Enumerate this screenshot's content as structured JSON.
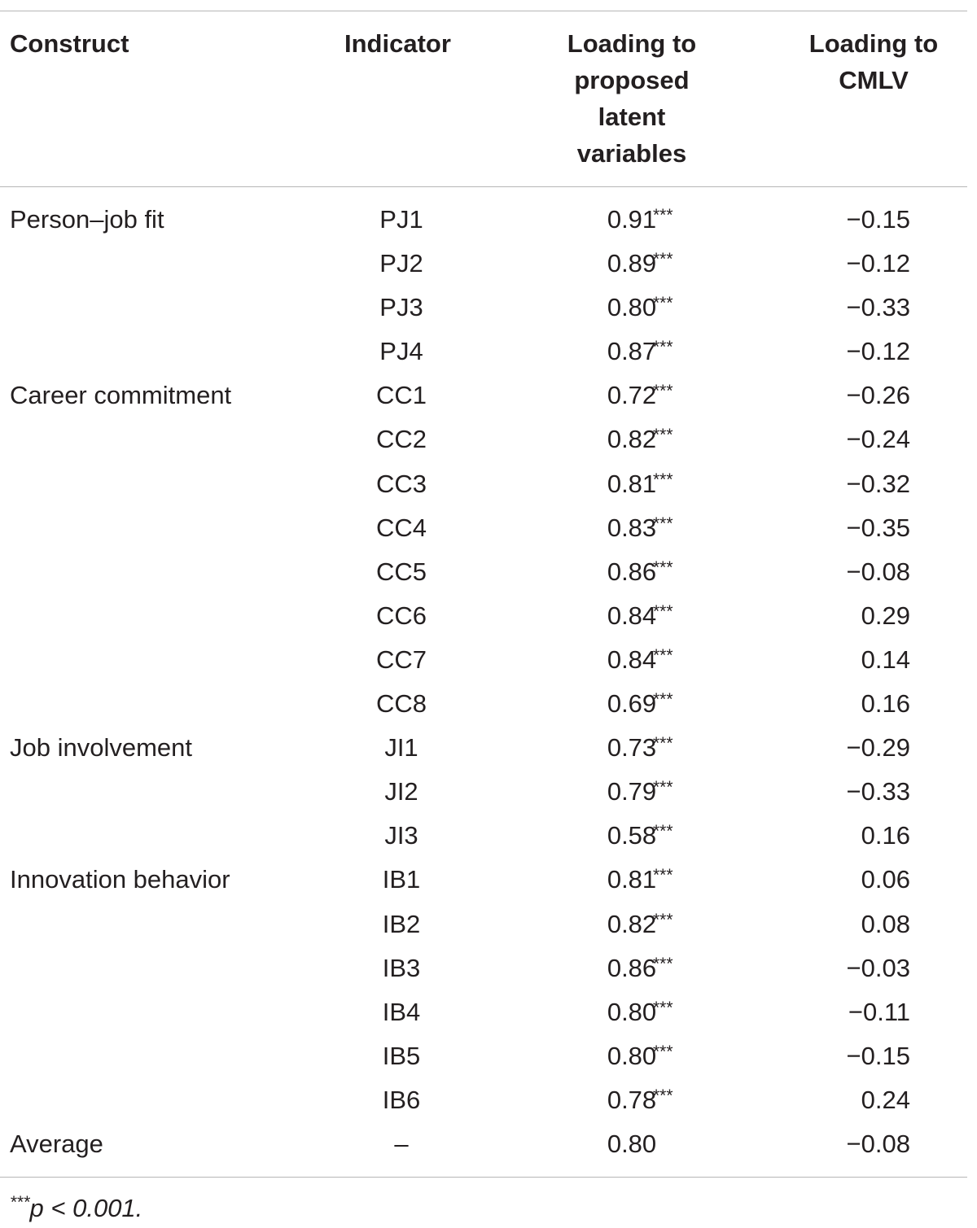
{
  "headers": {
    "construct": "Construct",
    "indicator": "Indicator",
    "loading_latent": [
      "Loading to",
      "proposed",
      "latent",
      "variables"
    ],
    "loading_cmlv": [
      "Loading to",
      "CMLV"
    ]
  },
  "rows": [
    {
      "construct": "Person–job fit",
      "indicator": "PJ1",
      "loading": "0.91",
      "sig": "***",
      "cmlv": "−0.15"
    },
    {
      "construct": "",
      "indicator": "PJ2",
      "loading": "0.89",
      "sig": "***",
      "cmlv": "−0.12"
    },
    {
      "construct": "",
      "indicator": "PJ3",
      "loading": "0.80",
      "sig": "***",
      "cmlv": "−0.33"
    },
    {
      "construct": "",
      "indicator": "PJ4",
      "loading": "0.87",
      "sig": "***",
      "cmlv": "−0.12"
    },
    {
      "construct": "Career commitment",
      "indicator": "CC1",
      "loading": "0.72",
      "sig": "***",
      "cmlv": "−0.26"
    },
    {
      "construct": "",
      "indicator": "CC2",
      "loading": "0.82",
      "sig": "***",
      "cmlv": "−0.24"
    },
    {
      "construct": "",
      "indicator": "CC3",
      "loading": "0.81",
      "sig": "***",
      "cmlv": "−0.32"
    },
    {
      "construct": "",
      "indicator": "CC4",
      "loading": "0.83",
      "sig": "***",
      "cmlv": "−0.35"
    },
    {
      "construct": "",
      "indicator": "CC5",
      "loading": "0.86",
      "sig": "***",
      "cmlv": "−0.08"
    },
    {
      "construct": "",
      "indicator": "CC6",
      "loading": "0.84",
      "sig": "***",
      "cmlv": "0.29"
    },
    {
      "construct": "",
      "indicator": "CC7",
      "loading": "0.84",
      "sig": "***",
      "cmlv": "0.14"
    },
    {
      "construct": "",
      "indicator": "CC8",
      "loading": "0.69",
      "sig": "***",
      "cmlv": "0.16"
    },
    {
      "construct": "Job involvement",
      "indicator": "JI1",
      "loading": "0.73",
      "sig": "***",
      "cmlv": "−0.29"
    },
    {
      "construct": "",
      "indicator": "JI2",
      "loading": "0.79",
      "sig": "***",
      "cmlv": "−0.33"
    },
    {
      "construct": "",
      "indicator": "JI3",
      "loading": "0.58",
      "sig": "***",
      "cmlv": "0.16"
    },
    {
      "construct": "Innovation behavior",
      "indicator": "IB1",
      "loading": "0.81",
      "sig": "***",
      "cmlv": "0.06"
    },
    {
      "construct": "",
      "indicator": "IB2",
      "loading": "0.82",
      "sig": "***",
      "cmlv": "0.08"
    },
    {
      "construct": "",
      "indicator": "IB3",
      "loading": "0.86",
      "sig": "***",
      "cmlv": "−0.03"
    },
    {
      "construct": "",
      "indicator": "IB4",
      "loading": "0.80",
      "sig": "***",
      "cmlv": "−0.11"
    },
    {
      "construct": "",
      "indicator": "IB5",
      "loading": "0.80",
      "sig": "***",
      "cmlv": "−0.15"
    },
    {
      "construct": "",
      "indicator": "IB6",
      "loading": "0.78",
      "sig": "***",
      "cmlv": "0.24"
    },
    {
      "construct": "Average",
      "indicator": "–",
      "loading": "0.80",
      "sig": "",
      "cmlv": "−0.08"
    }
  ],
  "footnote": {
    "mark": "***",
    "text": "p < 0.001."
  }
}
